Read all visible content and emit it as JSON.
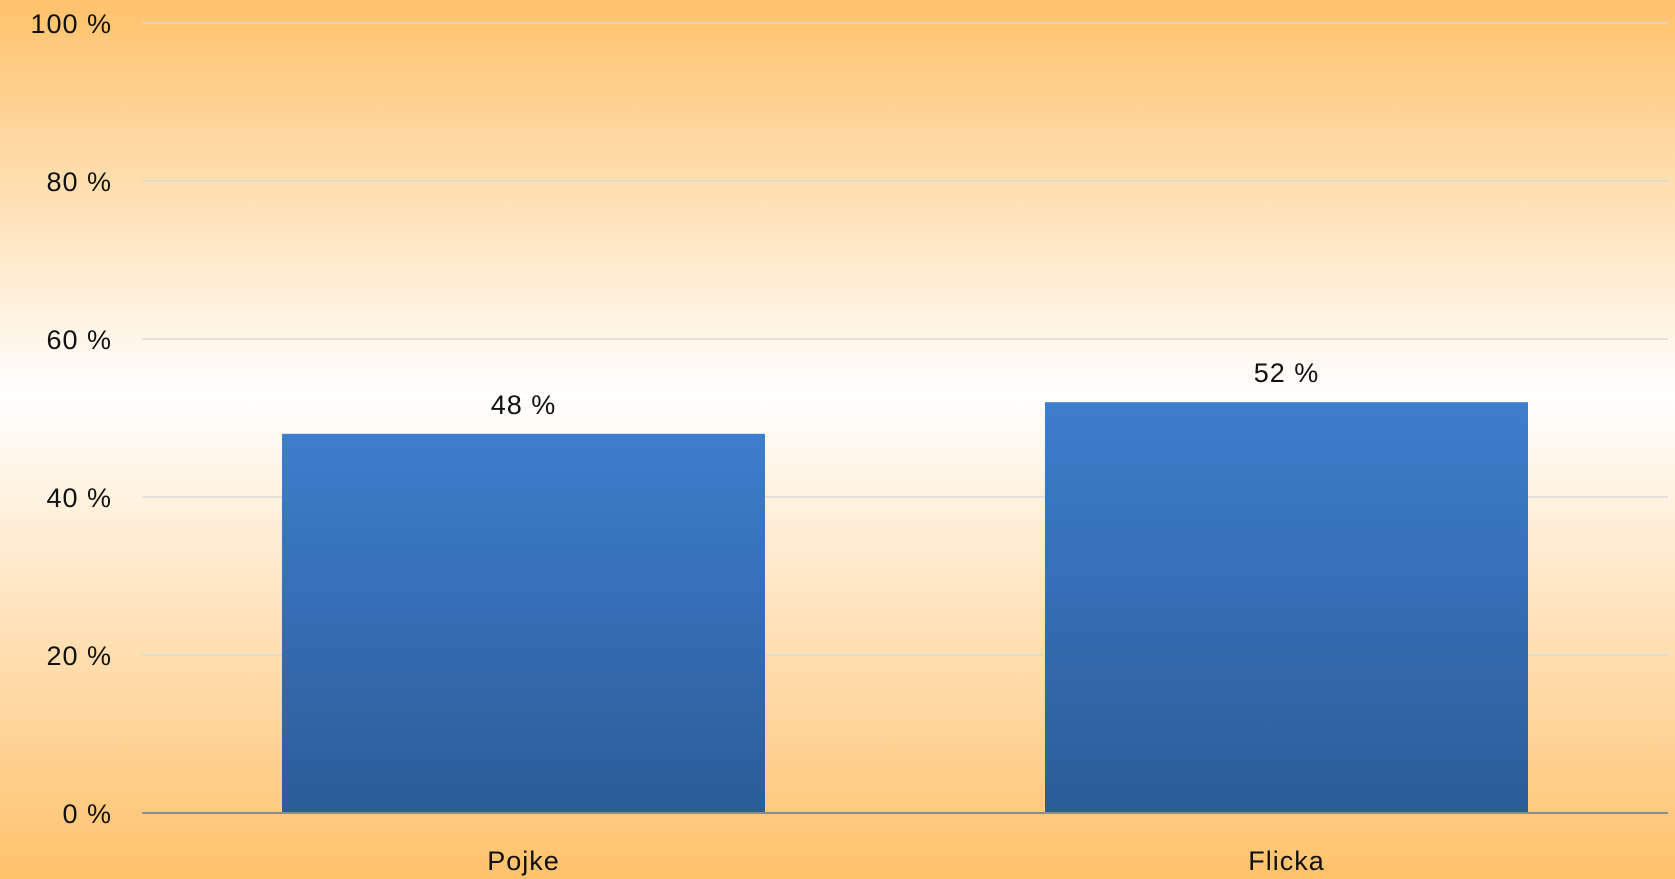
{
  "chart_data": {
    "type": "bar",
    "categories": [
      "Pojke",
      "Flicka"
    ],
    "values": [
      48,
      52
    ],
    "data_labels": [
      "48 %",
      "52 %"
    ],
    "title": "",
    "xlabel": "",
    "ylabel": "",
    "ylim": [
      0,
      100
    ],
    "yticks": [
      0,
      20,
      40,
      60,
      80,
      100
    ],
    "ytick_labels": [
      "0 %",
      "20 %",
      "40 %",
      "60 %",
      "80 %",
      "100 %"
    ],
    "grid": true,
    "legend": "none",
    "colors": {
      "bar_top": "#3D7ECC",
      "bar_bottom": "#2C5C98",
      "background_edge": "#FFC26B",
      "background_center": "#FFFFFF",
      "gridline": "#D9D9D9",
      "axis": "#8C8C8C"
    }
  }
}
